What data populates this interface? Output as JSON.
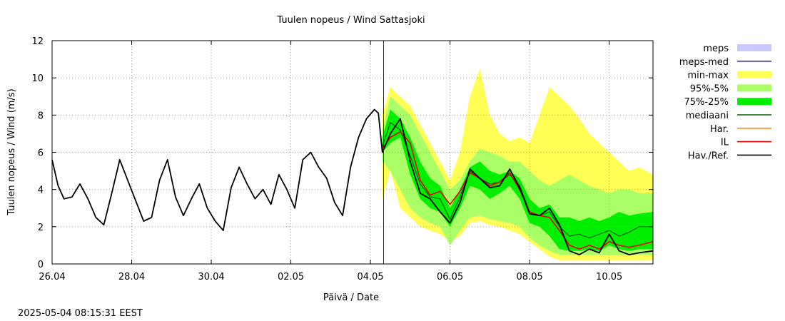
{
  "timestamp": "2025-05-04 08:15:31 EEST",
  "chart_data": {
    "type": "line",
    "title": "Tuulen nopeus / Wind  Sattasjoki",
    "xlabel": "Päivä / Date",
    "ylabel": "Tuulen nopeus / Wind (m/s)",
    "x_unit": "days since 26.04 00:00",
    "xlim": [
      0,
      15.1
    ],
    "ylim": [
      0,
      12
    ],
    "ytick_labels": [
      "0",
      "2",
      "4",
      "6",
      "8",
      "10",
      "12"
    ],
    "ytick_values": [
      0,
      2,
      4,
      6,
      8,
      10,
      12
    ],
    "xtick_labels": [
      "26.04",
      "28.04",
      "30.04",
      "02.05",
      "04.05",
      "06.05",
      "08.05",
      "10.05"
    ],
    "xtick_values": [
      0,
      2,
      4,
      6,
      8,
      10,
      12,
      14
    ],
    "grid": true,
    "forecast_start": 8.33,
    "legend": [
      {
        "label": "meps",
        "color": "#c8c8ff",
        "kind": "box"
      },
      {
        "label": "meps-med",
        "color": "#3232d2",
        "kind": "line"
      },
      {
        "label": "min-max",
        "color": "#ffff55",
        "kind": "box"
      },
      {
        "label": "95%-5%",
        "color": "#aaff66",
        "kind": "box"
      },
      {
        "label": "75%-25%",
        "color": "#00ee00",
        "kind": "box"
      },
      {
        "label": "mediaani",
        "color": "#006400",
        "kind": "line"
      },
      {
        "label": "Har.",
        "color": "#ff8c00",
        "kind": "line"
      },
      {
        "label": "IL",
        "color": "#ee0000",
        "kind": "line"
      },
      {
        "label": "Hav./Ref.",
        "color": "#000000",
        "kind": "line"
      }
    ],
    "bands_x": [
      8.3,
      8.5,
      8.75,
      9.0,
      9.25,
      9.5,
      9.75,
      10.0,
      10.25,
      10.5,
      10.75,
      11.0,
      11.25,
      11.5,
      11.75,
      12.0,
      12.25,
      12.5,
      12.75,
      13.0,
      13.25,
      13.5,
      13.75,
      14.0,
      14.25,
      14.5,
      14.75,
      15.1
    ],
    "min_max": {
      "upper": [
        8.0,
        9.5,
        9.0,
        8.5,
        7.5,
        6.5,
        5.5,
        4.5,
        6.0,
        9.0,
        10.5,
        8.0,
        7.0,
        6.6,
        6.8,
        6.5,
        8.0,
        9.5,
        9.0,
        8.5,
        7.8,
        7.0,
        6.5,
        6.0,
        5.5,
        5.0,
        5.2,
        4.8
      ],
      "lower": [
        3.5,
        5.0,
        3.0,
        2.5,
        2.0,
        1.8,
        1.6,
        1.2,
        1.5,
        2.2,
        2.3,
        2.1,
        2.0,
        1.8,
        1.6,
        1.2,
        0.8,
        0.4,
        0.2,
        0.2,
        0.2,
        0.2,
        0.2,
        0.2,
        0.2,
        0.2,
        0.2,
        0.2
      ]
    },
    "p95_p5": {
      "upper": [
        7.2,
        9.0,
        8.5,
        8.0,
        7.0,
        6.0,
        5.0,
        4.0,
        4.5,
        5.5,
        6.2,
        6.0,
        5.8,
        5.5,
        5.5,
        5.0,
        4.5,
        4.2,
        4.5,
        4.8,
        4.5,
        4.2,
        4.0,
        3.8,
        4.0,
        4.0,
        3.8,
        3.8
      ],
      "lower": [
        5.5,
        5.0,
        4.0,
        3.0,
        2.5,
        2.2,
        2.0,
        1.0,
        1.8,
        2.5,
        2.6,
        2.4,
        2.3,
        2.2,
        2.0,
        1.4,
        1.0,
        0.7,
        0.5,
        0.5,
        0.5,
        0.5,
        0.5,
        0.5,
        0.5,
        0.5,
        0.5,
        0.5
      ]
    },
    "p75_p25": {
      "upper": [
        6.8,
        8.3,
        7.8,
        6.8,
        5.5,
        4.6,
        4.2,
        3.0,
        4.0,
        5.2,
        5.5,
        5.0,
        4.8,
        5.0,
        4.6,
        3.5,
        3.0,
        3.2,
        2.5,
        2.5,
        2.3,
        2.5,
        2.3,
        2.5,
        2.8,
        2.6,
        2.7,
        2.8
      ],
      "lower": [
        6.0,
        6.5,
        6.8,
        4.8,
        3.5,
        3.0,
        2.8,
        2.0,
        3.0,
        4.2,
        4.0,
        3.5,
        3.8,
        4.2,
        3.5,
        2.2,
        2.0,
        1.5,
        0.8,
        0.7,
        0.7,
        0.8,
        0.7,
        1.0,
        0.8,
        0.7,
        0.8,
        0.8
      ]
    },
    "series": [
      {
        "name": "mediaani",
        "color": "#006400",
        "x": [
          8.3,
          8.5,
          8.75,
          9.0,
          9.25,
          9.5,
          9.75,
          10.0,
          10.25,
          10.5,
          10.75,
          11.0,
          11.25,
          11.5,
          11.75,
          12.0,
          12.25,
          12.5,
          12.75,
          13.0,
          13.25,
          13.5,
          13.75,
          14.0,
          14.25,
          14.5,
          14.75,
          15.1
        ],
        "y": [
          6.3,
          7.6,
          7.2,
          5.8,
          4.3,
          3.6,
          3.5,
          2.4,
          3.6,
          5.0,
          4.6,
          4.3,
          4.4,
          4.8,
          4.2,
          2.8,
          2.6,
          2.8,
          2.0,
          1.5,
          1.6,
          1.4,
          1.6,
          1.8,
          1.5,
          1.7,
          2.0,
          2.0
        ]
      },
      {
        "name": "IL",
        "color": "#ee0000",
        "x": [
          8.3,
          8.5,
          8.75,
          9.0,
          9.25,
          9.5,
          9.75,
          10.0,
          10.25,
          10.5,
          10.75,
          11.0,
          11.25,
          11.5,
          11.75,
          12.0,
          12.25,
          12.5,
          12.75,
          13.0,
          13.25,
          13.5,
          13.75,
          14.0,
          14.25,
          14.5,
          14.75,
          15.1
        ],
        "y": [
          6.2,
          6.8,
          7.1,
          6.5,
          4.5,
          3.7,
          3.9,
          3.2,
          3.9,
          4.9,
          4.6,
          4.2,
          4.4,
          4.9,
          4.0,
          2.8,
          2.6,
          2.5,
          1.8,
          1.0,
          0.8,
          1.0,
          0.8,
          1.2,
          1.0,
          0.9,
          1.0,
          1.2
        ]
      },
      {
        "name": "Hav./Ref.",
        "color": "#000000",
        "x": [
          0.0,
          0.15,
          0.3,
          0.5,
          0.7,
          0.9,
          1.1,
          1.3,
          1.5,
          1.7,
          1.9,
          2.1,
          2.3,
          2.5,
          2.7,
          2.9,
          3.1,
          3.3,
          3.5,
          3.7,
          3.9,
          4.1,
          4.3,
          4.5,
          4.7,
          4.9,
          5.1,
          5.3,
          5.5,
          5.7,
          5.9,
          6.1,
          6.3,
          6.5,
          6.7,
          6.9,
          7.1,
          7.3,
          7.5,
          7.7,
          7.9,
          8.1,
          8.2,
          8.3,
          8.5,
          8.75,
          9.0,
          9.25,
          9.5,
          9.75,
          10.0,
          10.25,
          10.5,
          10.75,
          11.0,
          11.25,
          11.5,
          11.75,
          12.0,
          12.25,
          12.5,
          12.75,
          13.0,
          13.25,
          13.5,
          13.75,
          14.0,
          14.25,
          14.5,
          14.75,
          15.1
        ],
        "y": [
          5.6,
          4.2,
          3.5,
          3.6,
          4.3,
          3.5,
          2.5,
          2.1,
          3.8,
          5.6,
          4.5,
          3.4,
          2.3,
          2.5,
          4.5,
          5.6,
          3.6,
          2.6,
          3.5,
          4.3,
          3.0,
          2.3,
          1.8,
          4.1,
          5.2,
          4.3,
          3.5,
          4.0,
          3.2,
          4.8,
          4.0,
          3.0,
          5.6,
          6.0,
          5.2,
          4.6,
          3.3,
          2.6,
          5.2,
          6.8,
          7.8,
          8.3,
          8.1,
          6.0,
          7.0,
          7.8,
          5.5,
          3.8,
          3.5,
          2.8,
          2.2,
          3.3,
          5.1,
          4.6,
          4.1,
          4.2,
          5.1,
          4.1,
          2.7,
          2.6,
          3.0,
          2.1,
          0.7,
          0.5,
          0.8,
          0.6,
          1.6,
          0.7,
          0.5,
          0.6,
          0.7
        ]
      }
    ]
  }
}
